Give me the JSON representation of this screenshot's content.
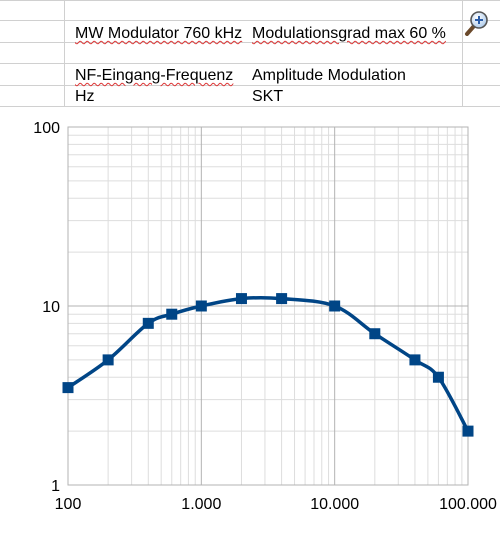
{
  "spreadsheet": {
    "row1": {
      "col_b": "MW Modulator 760 kHz",
      "col_c": "Modulationsgrad max 60 %"
    },
    "row3": {
      "col_b": "NF-Eingang-Frequenz",
      "col_c": "Amplitude Modulation"
    },
    "row4": {
      "col_b": "Hz",
      "col_c": "SKT"
    },
    "zoom_icon": "zoom-in-magnifier-icon"
  },
  "colors": {
    "series": "#004586",
    "grid_major": "#b3b3b3",
    "grid_minor": "#dddddd",
    "sheet_grid": "#d0d0d0",
    "spell_underline": "#dd3333"
  },
  "chart_data": {
    "type": "line",
    "xscale": "log",
    "yscale": "log",
    "xlim": [
      100,
      100000
    ],
    "ylim": [
      1,
      100
    ],
    "x_tick_labels": [
      "100",
      "1.000",
      "10.000",
      "100.000"
    ],
    "y_tick_labels": [
      "1",
      "10",
      "100"
    ],
    "grid": true,
    "legend": "none",
    "marker": "square",
    "smooth": true,
    "title": "",
    "xlabel": "",
    "ylabel": "",
    "series": [
      {
        "x": [
          100,
          200,
          400,
          600,
          1000,
          2000,
          4000,
          10000,
          20000,
          40000,
          60000,
          100000
        ],
        "y": [
          3.5,
          5,
          8,
          9,
          10,
          11,
          11,
          10,
          7,
          5,
          4,
          2
        ]
      }
    ]
  }
}
